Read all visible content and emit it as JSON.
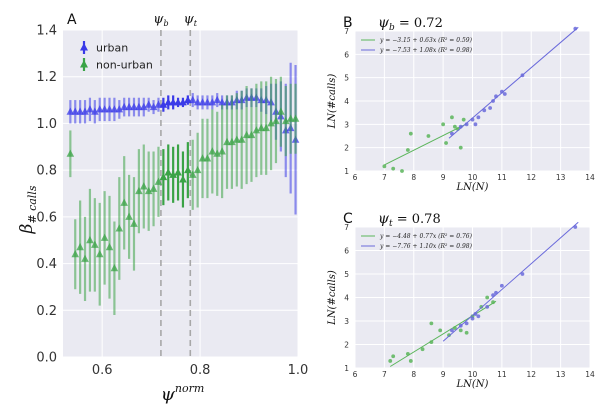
{
  "chart_data": [
    {
      "type": "scatter",
      "panel_label": "A",
      "xlabel": "ψ",
      "xlabel_sup": "norm",
      "ylabel": "β",
      "ylabel_sub": "# calls",
      "xlim": [
        0.52,
        1.0
      ],
      "ylim": [
        0.0,
        1.4
      ],
      "x_ticks": [
        0.6,
        0.8,
        1.0
      ],
      "x_tick_labels": [
        "0.6",
        "0.8",
        "1.0"
      ],
      "y_ticks": [
        0.0,
        0.2,
        0.4,
        0.6,
        0.8,
        1.0,
        1.2,
        1.4
      ],
      "y_tick_labels": [
        "0.0",
        "0.2",
        "0.4",
        "0.6",
        "0.8",
        "1.0",
        "1.2",
        "1.4"
      ],
      "grid": true,
      "legend": "top-left",
      "vlines": [
        {
          "label": "ψ",
          "sub": "b",
          "x": 0.72
        },
        {
          "label": "ψ",
          "sub": "t",
          "x": 0.78
        }
      ],
      "highlight_range": [
        0.72,
        0.78
      ],
      "series": [
        {
          "name": "urban",
          "color": "#3a3ae8",
          "x": [
            0.535,
            0.545,
            0.555,
            0.565,
            0.575,
            0.585,
            0.595,
            0.605,
            0.615,
            0.625,
            0.635,
            0.645,
            0.655,
            0.665,
            0.675,
            0.685,
            0.695,
            0.705,
            0.715,
            0.725,
            0.735,
            0.745,
            0.755,
            0.765,
            0.775,
            0.785,
            0.795,
            0.805,
            0.815,
            0.825,
            0.835,
            0.845,
            0.855,
            0.865,
            0.875,
            0.885,
            0.895,
            0.905,
            0.915,
            0.925,
            0.935,
            0.945,
            0.955,
            0.965,
            0.975,
            0.985,
            0.995
          ],
          "y": [
            1.05,
            1.05,
            1.05,
            1.05,
            1.06,
            1.05,
            1.06,
            1.06,
            1.06,
            1.06,
            1.06,
            1.07,
            1.07,
            1.07,
            1.07,
            1.07,
            1.08,
            1.07,
            1.08,
            1.08,
            1.09,
            1.09,
            1.09,
            1.09,
            1.1,
            1.1,
            1.09,
            1.09,
            1.09,
            1.09,
            1.1,
            1.09,
            1.09,
            1.09,
            1.1,
            1.1,
            1.11,
            1.11,
            1.11,
            1.1,
            1.1,
            1.09,
            1.05,
            1.03,
            0.97,
            0.98,
            0.93
          ],
          "err": [
            0.05,
            0.05,
            0.05,
            0.05,
            0.05,
            0.05,
            0.05,
            0.05,
            0.05,
            0.05,
            0.04,
            0.04,
            0.04,
            0.04,
            0.04,
            0.04,
            0.03,
            0.03,
            0.03,
            0.03,
            0.03,
            0.03,
            0.02,
            0.02,
            0.02,
            0.03,
            0.03,
            0.03,
            0.03,
            0.03,
            0.03,
            0.03,
            0.03,
            0.03,
            0.04,
            0.04,
            0.04,
            0.04,
            0.04,
            0.05,
            0.06,
            0.08,
            0.12,
            0.15,
            0.2,
            0.28,
            0.32
          ]
        },
        {
          "name": "non-urban",
          "color": "#3aa346",
          "x": [
            0.535,
            0.545,
            0.555,
            0.565,
            0.575,
            0.585,
            0.595,
            0.605,
            0.615,
            0.625,
            0.635,
            0.645,
            0.655,
            0.665,
            0.675,
            0.685,
            0.695,
            0.705,
            0.715,
            0.725,
            0.735,
            0.745,
            0.755,
            0.765,
            0.775,
            0.785,
            0.795,
            0.805,
            0.815,
            0.825,
            0.835,
            0.845,
            0.855,
            0.865,
            0.875,
            0.885,
            0.895,
            0.905,
            0.915,
            0.925,
            0.935,
            0.945,
            0.955,
            0.965,
            0.975,
            0.985,
            0.995
          ],
          "y": [
            0.87,
            0.44,
            0.47,
            0.42,
            0.5,
            0.48,
            0.44,
            0.51,
            0.47,
            0.38,
            0.55,
            0.66,
            0.6,
            0.57,
            0.71,
            0.73,
            0.71,
            0.72,
            0.75,
            0.77,
            0.79,
            0.78,
            0.79,
            0.76,
            0.8,
            0.78,
            0.8,
            0.85,
            0.85,
            0.88,
            0.87,
            0.88,
            0.92,
            0.92,
            0.93,
            0.93,
            0.95,
            0.95,
            0.97,
            0.98,
            0.98,
            1.0,
            1.01,
            1.05,
            1.01,
            1.02,
            1.02
          ],
          "err": [
            0.1,
            0.15,
            0.2,
            0.18,
            0.22,
            0.2,
            0.22,
            0.2,
            0.22,
            0.2,
            0.22,
            0.2,
            0.18,
            0.2,
            0.18,
            0.18,
            0.17,
            0.16,
            0.15,
            0.12,
            0.12,
            0.12,
            0.12,
            0.12,
            0.12,
            0.15,
            0.16,
            0.17,
            0.17,
            0.18,
            0.18,
            0.2,
            0.2,
            0.2,
            0.2,
            0.21,
            0.21,
            0.2,
            0.2,
            0.2,
            0.2,
            0.2,
            0.18,
            0.15,
            0.15,
            0.15,
            0.15
          ]
        }
      ]
    },
    {
      "type": "scatter",
      "panel_label": "B",
      "title": "ψ_b = 0.72",
      "title_sym": "ψ",
      "title_sub": "b",
      "title_rest": " = 0.72",
      "xlabel": "LN(N)",
      "ylabel": "LN(#calls)",
      "xlim": [
        6,
        14
      ],
      "ylim": [
        1,
        7
      ],
      "x_ticks": [
        6,
        7,
        8,
        9,
        10,
        11,
        12,
        13,
        14
      ],
      "x_tick_labels": [
        "6",
        "7",
        "8",
        "9",
        "10",
        "11",
        "12",
        "13",
        "14"
      ],
      "y_ticks": [
        1,
        2,
        3,
        4,
        5,
        6,
        7
      ],
      "y_tick_labels": [
        "1",
        "2",
        "3",
        "4",
        "5",
        "6",
        "7"
      ],
      "grid": true,
      "legend": "top-left",
      "series": [
        {
          "name": "y = −3.15 + 0.63x (R² = 0.59)",
          "color": "#5ab55a",
          "fit": {
            "a": -3.15,
            "b": 0.63,
            "x": [
              7.0,
              9.8
            ]
          },
          "points": [
            [
              7.0,
              1.2
            ],
            [
              7.3,
              1.1
            ],
            [
              7.6,
              1.0
            ],
            [
              7.9,
              2.6
            ],
            [
              7.8,
              1.9
            ],
            [
              8.5,
              2.5
            ],
            [
              9.0,
              3.0
            ],
            [
              9.1,
              2.2
            ],
            [
              9.3,
              3.3
            ],
            [
              9.4,
              2.9
            ],
            [
              9.6,
              2.0
            ],
            [
              9.5,
              2.8
            ],
            [
              9.7,
              3.2
            ]
          ]
        },
        {
          "name": "y = −7.53 + 1.08x (R² = 0.98)",
          "color": "#6a6adb",
          "fit": {
            "a": -7.53,
            "b": 1.08,
            "x": [
              9.2,
              13.6
            ]
          },
          "points": [
            [
              9.3,
              2.6
            ],
            [
              9.6,
              2.9
            ],
            [
              9.8,
              3.0
            ],
            [
              10.0,
              3.2
            ],
            [
              10.1,
              3.0
            ],
            [
              10.2,
              3.3
            ],
            [
              10.4,
              3.6
            ],
            [
              10.6,
              3.7
            ],
            [
              10.7,
              4.0
            ],
            [
              10.8,
              4.2
            ],
            [
              11.0,
              4.4
            ],
            [
              11.1,
              4.3
            ],
            [
              11.7,
              5.1
            ],
            [
              13.5,
              7.1
            ]
          ]
        }
      ]
    },
    {
      "type": "scatter",
      "panel_label": "C",
      "title": "ψ_t = 0.78",
      "title_sym": "ψ",
      "title_sub": "t",
      "title_rest": " = 0.78",
      "xlabel": "LN(N)",
      "ylabel": "LN(#calls)",
      "xlim": [
        6,
        14
      ],
      "ylim": [
        1,
        7
      ],
      "x_ticks": [
        6,
        7,
        8,
        9,
        10,
        11,
        12,
        13,
        14
      ],
      "x_tick_labels": [
        "6",
        "7",
        "8",
        "9",
        "10",
        "11",
        "12",
        "13",
        "14"
      ],
      "y_ticks": [
        1,
        2,
        3,
        4,
        5,
        6,
        7
      ],
      "y_tick_labels": [
        "1",
        "2",
        "3",
        "4",
        "5",
        "6",
        "7"
      ],
      "grid": true,
      "legend": "top-left",
      "series": [
        {
          "name": "y = −4.48 + 0.77x (R² = 0.76)",
          "color": "#5ab55a",
          "fit": {
            "a": -4.48,
            "b": 0.77,
            "x": [
              7.2,
              10.8
            ]
          },
          "points": [
            [
              7.2,
              1.3
            ],
            [
              7.3,
              1.5
            ],
            [
              7.8,
              1.6
            ],
            [
              7.9,
              1.3
            ],
            [
              8.3,
              1.8
            ],
            [
              8.6,
              2.1
            ],
            [
              8.6,
              2.9
            ],
            [
              8.9,
              2.6
            ],
            [
              9.2,
              2.4
            ],
            [
              9.4,
              2.7
            ],
            [
              9.6,
              2.6
            ],
            [
              9.8,
              2.5
            ],
            [
              10.0,
              3.2
            ],
            [
              10.3,
              3.6
            ],
            [
              10.5,
              4.0
            ],
            [
              10.7,
              3.8
            ]
          ]
        },
        {
          "name": "y = −7.76 + 1.10x (R² = 0.98)",
          "color": "#6a6adb",
          "fit": {
            "a": -7.76,
            "b": 1.1,
            "x": [
              9.0,
              13.6
            ]
          },
          "points": [
            [
              9.3,
              2.6
            ],
            [
              9.6,
              2.8
            ],
            [
              9.8,
              2.9
            ],
            [
              10.0,
              3.1
            ],
            [
              10.1,
              3.3
            ],
            [
              10.2,
              3.2
            ],
            [
              10.5,
              3.6
            ],
            [
              10.7,
              4.1
            ],
            [
              10.8,
              4.2
            ],
            [
              11.0,
              4.5
            ],
            [
              11.7,
              5.0
            ],
            [
              13.5,
              7.0
            ]
          ]
        }
      ]
    }
  ]
}
